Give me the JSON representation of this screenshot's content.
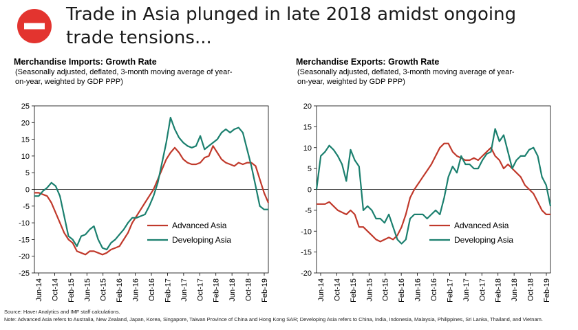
{
  "header": {
    "title": "Trade in Asia plunged in late 2018 amidst ongoing trade tensions...",
    "icon": "no-entry-icon",
    "icon_color": "#e3342f"
  },
  "colors": {
    "advanced": "#c0392b",
    "developing": "#1a7f6e"
  },
  "chart_data": [
    {
      "type": "line",
      "title": "Merchandise Imports: Growth Rate",
      "subtitle": "(Seasonally adjusted, deflated, 3-month moving average of year-on-year, weighted by GDP PPP)",
      "x_tick_labels": [
        "Jun-14",
        "Oct-14",
        "Feb-15",
        "Jun-15",
        "Oct-15",
        "Feb-16",
        "Jun-16",
        "Oct-16",
        "Feb-17",
        "Jun-17",
        "Oct-17",
        "Feb-18",
        "Jun-18",
        "Oct-18",
        "Feb-19"
      ],
      "ylim": [
        -25,
        25
      ],
      "yticks": [
        -25,
        -20,
        -15,
        -10,
        -5,
        0,
        5,
        10,
        15,
        20,
        25
      ],
      "grid": false,
      "legend": "bottom-right",
      "series": [
        {
          "name": "Advanced Asia",
          "values": [
            -1,
            -1,
            -1.5,
            -2,
            -4,
            -7,
            -10,
            -13,
            -15,
            -16,
            -18.5,
            -19,
            -19.5,
            -18.5,
            -18.5,
            -19,
            -19.5,
            -19,
            -18,
            -17.5,
            -17,
            -15,
            -13,
            -10,
            -8,
            -6,
            -4,
            -2,
            0,
            3,
            6,
            9,
            11,
            12.5,
            11,
            9,
            8,
            7.5,
            7.5,
            8,
            9.5,
            10,
            13,
            11,
            9,
            8,
            7.5,
            7,
            8,
            7.5,
            8,
            8,
            7,
            3,
            -1,
            -4
          ]
        },
        {
          "name": "Developing Asia",
          "values": [
            -2,
            -2,
            -0.5,
            0.5,
            2,
            1,
            -2,
            -8,
            -14,
            -15,
            -17,
            -14,
            -13.5,
            -12,
            -11,
            -15,
            -17.5,
            -18,
            -16,
            -15,
            -13.5,
            -12,
            -10,
            -8.5,
            -8.5,
            -8,
            -7.5,
            -5,
            -2,
            2,
            8,
            14,
            21.5,
            18,
            15.5,
            14,
            13,
            12.5,
            13,
            16,
            12,
            13,
            14,
            15,
            17,
            18,
            17,
            18,
            18.5,
            17,
            12,
            7,
            1,
            -5,
            -6,
            -6
          ]
        }
      ]
    },
    {
      "type": "line",
      "title": "Merchandise Exports: Growth Rate",
      "subtitle": "(Seasonally adjusted, deflated, 3-month moving average of year-on-year, weighted by GDP PPP)",
      "x_tick_labels": [
        "Jun-14",
        "Oct-14",
        "Feb-15",
        "Jun-15",
        "Oct-15",
        "Feb-16",
        "Jun-16",
        "Oct-16",
        "Feb-17",
        "Jun-17",
        "Oct-17",
        "Feb-18",
        "Jun-18",
        "Oct-18",
        "Feb-19"
      ],
      "ylim": [
        -20,
        20
      ],
      "yticks": [
        -20,
        -15,
        -10,
        -5,
        0,
        5,
        10,
        15,
        20
      ],
      "grid": false,
      "legend": "bottom-right",
      "series": [
        {
          "name": "Advanced Asia",
          "values": [
            -3.5,
            -3.5,
            -3.5,
            -3,
            -4,
            -5,
            -5.5,
            -6,
            -5,
            -6,
            -9,
            -9,
            -10,
            -11,
            -12,
            -12.5,
            -12,
            -11.5,
            -12,
            -11,
            -9,
            -6,
            -2,
            0,
            1.5,
            3,
            4.5,
            6,
            8,
            10,
            11,
            11,
            9,
            8,
            7.5,
            7,
            7,
            7.5,
            7,
            8,
            9,
            10,
            8,
            7,
            5,
            6,
            5,
            4,
            3,
            1,
            0,
            -1,
            -3,
            -5,
            -6,
            -6
          ]
        },
        {
          "name": "Developing Asia",
          "values": [
            0,
            8,
            9,
            10.5,
            9.5,
            8,
            6,
            2,
            9.5,
            7,
            5.5,
            -5,
            -4,
            -5,
            -7,
            -7,
            -8,
            -6,
            -9,
            -12,
            -13,
            -12,
            -7,
            -6,
            -6,
            -6,
            -7,
            -6,
            -5,
            -6,
            -2,
            3,
            5.5,
            4,
            8,
            6,
            6,
            5,
            5,
            7,
            8.5,
            9,
            14.5,
            11.5,
            13,
            9,
            5,
            7,
            8,
            8,
            9.5,
            10,
            8,
            3,
            1,
            -4
          ]
        }
      ]
    }
  ],
  "footer": {
    "source": "Source: Haver Analytics and IMF staff calculations.",
    "note": "Note: Advanced Asia refers to Australia, New Zealand, Japan, Korea, Singapore, Taiwan Province of China and Hong Kong SAR; Developing Asia refers to China, India, Indonesia, Malaysia, Philippines, Sri Lanka, Thailand, and Vietnam."
  }
}
